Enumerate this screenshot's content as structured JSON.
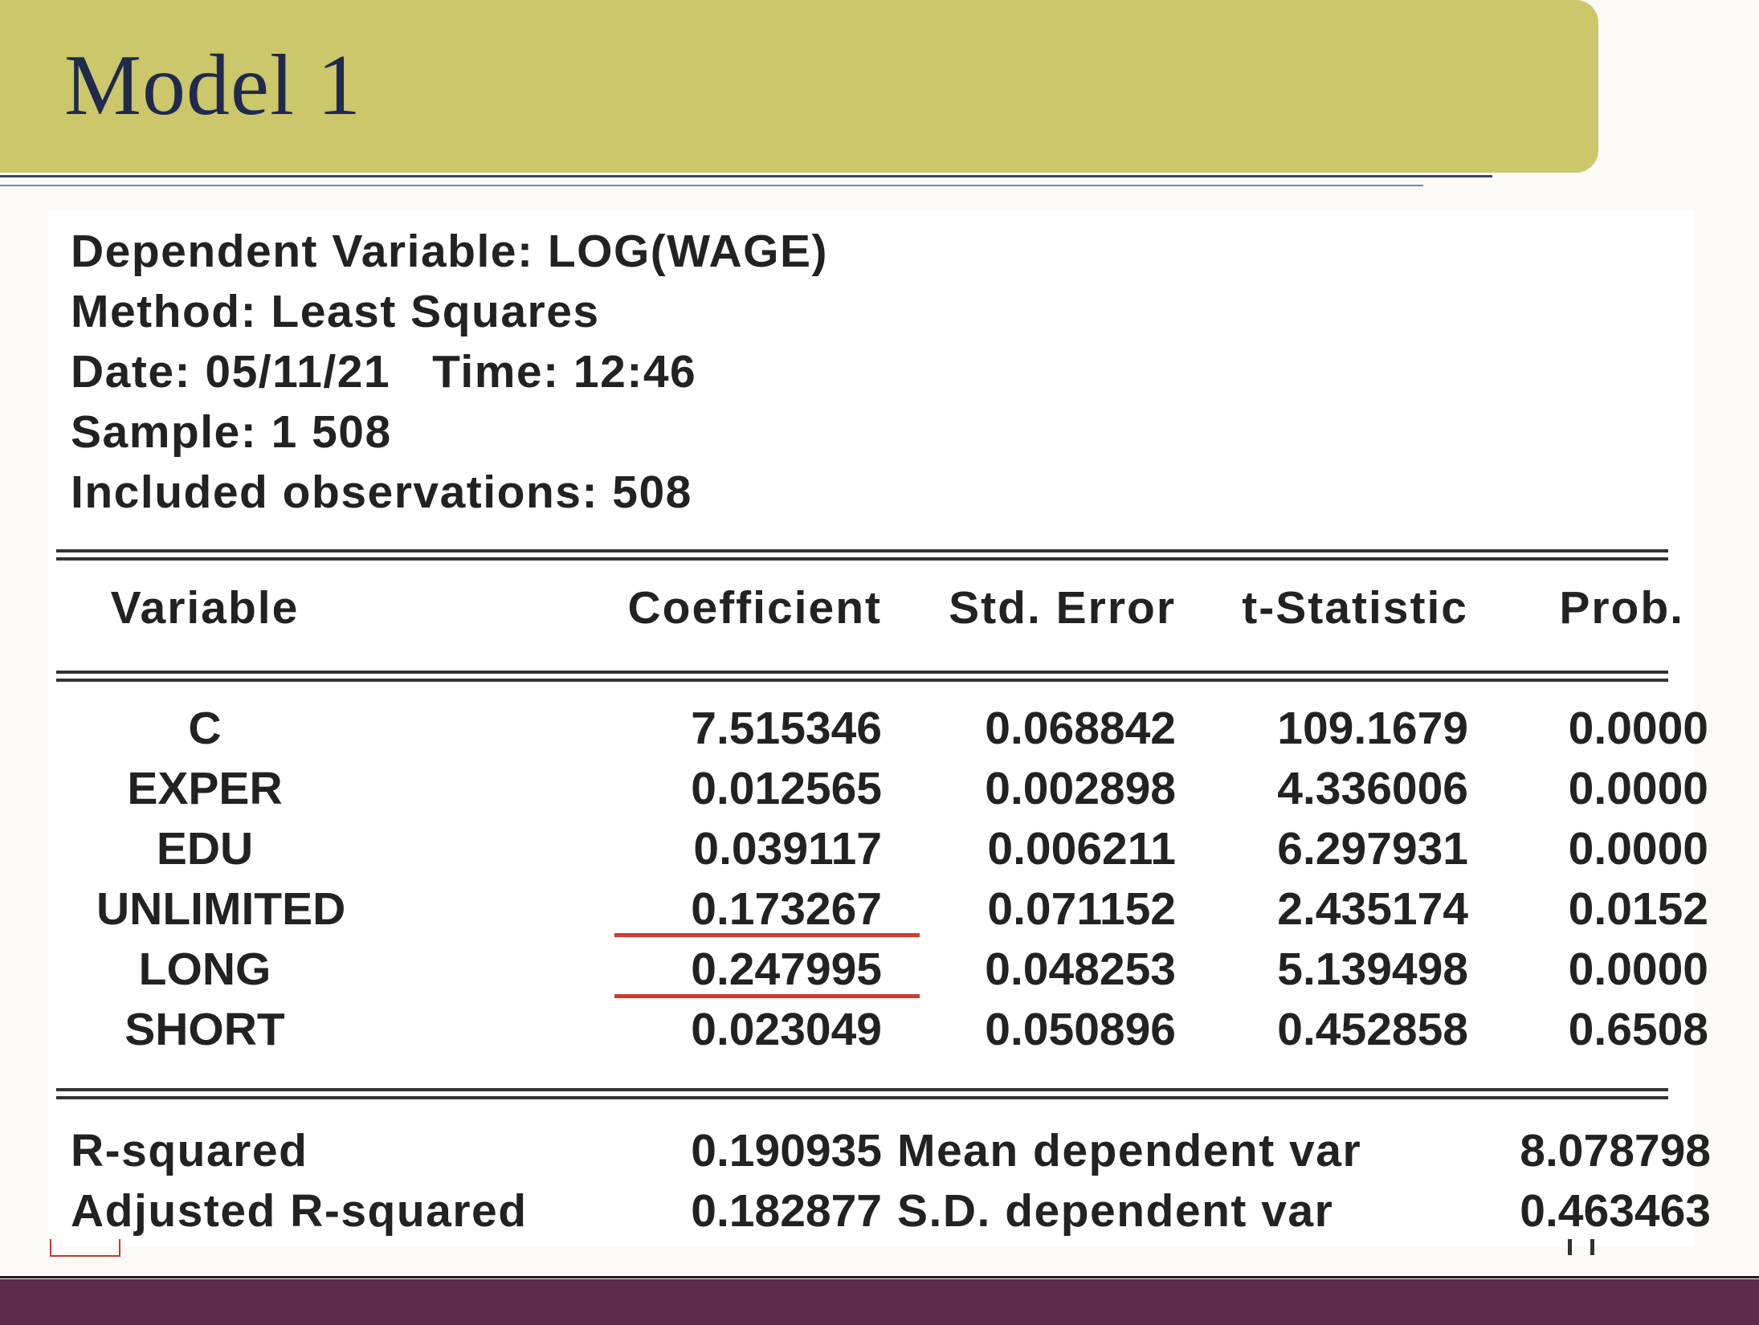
{
  "slide": {
    "title": "Model 1"
  },
  "header_lines": [
    "Dependent Variable: LOG(WAGE)",
    "Method: Least Squares",
    "Date: 05/11/21   Time: 12:46",
    "Sample: 1 508",
    "Included observations: 508"
  ],
  "table": {
    "columns": [
      "Variable",
      "Coefficient",
      "Std. Error",
      "t-Statistic",
      "Prob."
    ],
    "rows": [
      [
        "C",
        "7.515346",
        "0.068842",
        "109.1679",
        "0.0000"
      ],
      [
        "EXPER",
        "0.012565",
        "0.002898",
        "4.336006",
        "0.0000"
      ],
      [
        "EDU",
        "0.039117",
        "0.006211",
        "6.297931",
        "0.0000"
      ],
      [
        "UNLIMITED",
        "0.173267",
        "0.071152",
        "2.435174",
        "0.0152"
      ],
      [
        "LONG",
        "0.247995",
        "0.048253",
        "5.139498",
        "0.0000"
      ],
      [
        "SHORT",
        "0.023049",
        "0.050896",
        "0.452858",
        "0.6508"
      ]
    ],
    "highlighted_rows": [
      "UNLIMITED",
      "LONG"
    ],
    "highlight_color": "#d23a2a"
  },
  "stats": [
    {
      "label": "R-squared",
      "value": "0.190935",
      "label2": "Mean dependent var",
      "value2": "8.078798"
    },
    {
      "label": "Adjusted R-squared",
      "value": "0.182877",
      "label2": "S.D. dependent var",
      "value2": "0.463463"
    }
  ],
  "colors": {
    "title_bar": "#cbc76a",
    "title_text": "#1f2a4d",
    "footer": "#5b2b49"
  }
}
